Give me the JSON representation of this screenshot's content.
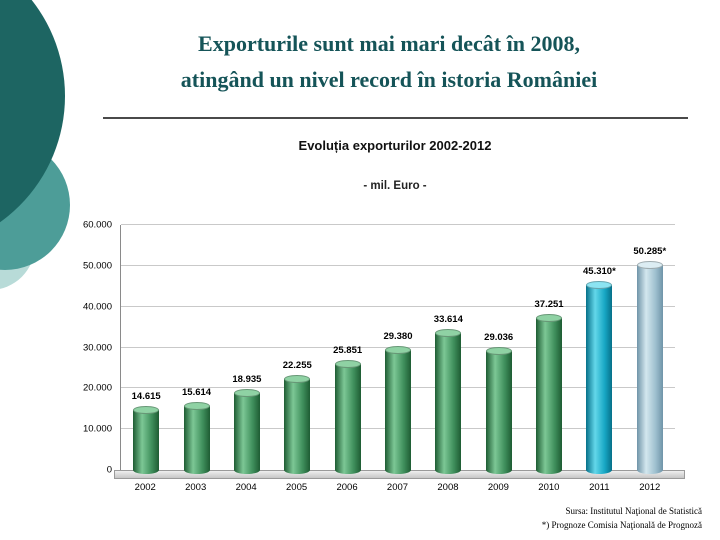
{
  "slide": {
    "title_line1": "Exporturile sunt mai mari decât în 2008,",
    "title_line2": "atingând un nivel record în istoria României",
    "title_color": "#155458",
    "source_line1": "Sursa: Institutul Naţional de Statistică",
    "source_line2": "*) Prognoze Comisia Naţională de Prognoză",
    "decoration_colors": {
      "dark": "#1d6562",
      "mid": "#4d9d98",
      "pale": "#b8dbd8"
    }
  },
  "chart_data": {
    "type": "bar",
    "title": "Evoluția exporturilor 2002-2012",
    "subtitle": "- mil. Euro -",
    "categories": [
      "2002",
      "2003",
      "2004",
      "2005",
      "2006",
      "2007",
      "2008",
      "2009",
      "2010",
      "2011",
      "2012"
    ],
    "values": [
      14615,
      15614,
      18935,
      22255,
      25851,
      29380,
      33614,
      29036,
      37251,
      45310,
      50285
    ],
    "labels": [
      "14.615",
      "15.614",
      "18.935",
      "22.255",
      "25.851",
      "29.380",
      "33.614",
      "29.036",
      "37.251",
      "45.310*",
      "50.285*"
    ],
    "ylim": [
      0,
      60000
    ],
    "ytick_step": 10000,
    "ytick_labels": [
      "0",
      "10.000",
      "20.000",
      "30.000",
      "40.000",
      "50.000",
      "60.000"
    ],
    "grid": true,
    "legend": "none",
    "colors": [
      "green",
      "green",
      "green",
      "green",
      "green",
      "green",
      "green",
      "green",
      "green",
      "cyan",
      "blue"
    ],
    "palette": {
      "green": {
        "dark": "#1e5c33",
        "mid": "#3f8f5c",
        "light": "#7cc795",
        "top": "#8fd2a4"
      },
      "cyan": {
        "dark": "#067089",
        "mid": "#17a7c4",
        "light": "#63d7ea",
        "top": "#8ce4f2"
      },
      "blue": {
        "dark": "#6f94a8",
        "mid": "#9dbfce",
        "light": "#d3e7ee",
        "top": "#dcedf3"
      }
    }
  }
}
